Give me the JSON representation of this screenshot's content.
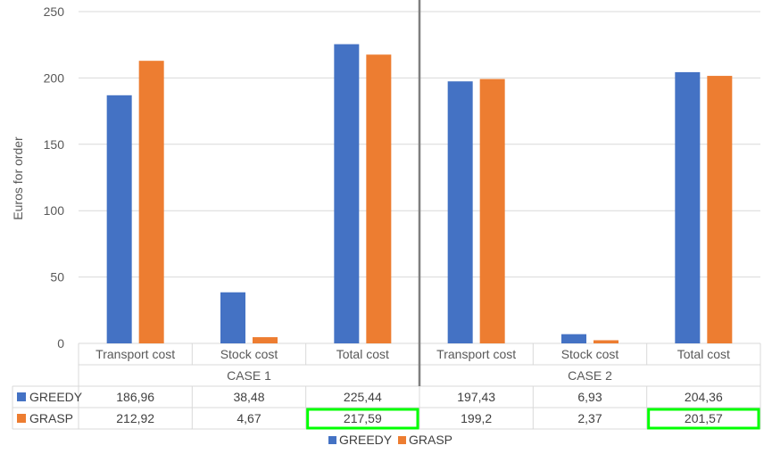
{
  "chart_data": {
    "type": "bar",
    "ylabel": "Euros for order",
    "xlabel": "",
    "ylim": [
      0,
      250
    ],
    "yticks": [
      0,
      50,
      100,
      150,
      200,
      250
    ],
    "grid": true,
    "legend_position": "bottom",
    "groups": [
      "CASE 1",
      "CASE 2"
    ],
    "categories": [
      "Transport cost",
      "Stock cost",
      "Total cost",
      "Transport cost",
      "Stock cost",
      "Total cost"
    ],
    "series": [
      {
        "name": "GREEDY",
        "color": "#4472c4",
        "values": [
          186.96,
          38.48,
          225.44,
          197.43,
          6.93,
          204.36
        ],
        "labels": [
          "186,96",
          "38,48",
          "225,44",
          "197,43",
          "6,93",
          "204,36"
        ]
      },
      {
        "name": "GRASP",
        "color": "#ed7d31",
        "values": [
          212.92,
          4.67,
          217.59,
          199.2,
          2.37,
          201.57
        ],
        "labels": [
          "212,92",
          "4,67",
          "217,59",
          "199,2",
          "2,37",
          "201,57"
        ]
      }
    ],
    "highlighted_cells": [
      {
        "series": "GRASP",
        "category_index": 2,
        "color": "#00ff00"
      },
      {
        "series": "GRASP",
        "category_index": 5,
        "color": "#00ff00"
      }
    ]
  }
}
